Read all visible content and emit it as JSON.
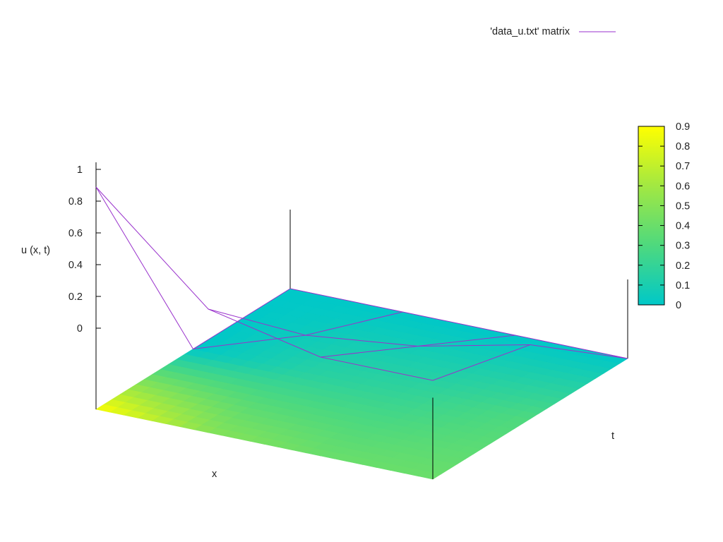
{
  "chart_data": {
    "type": "surface",
    "series": [
      {
        "name": "'data_u.txt' matrix",
        "color": "#9932cc"
      }
    ],
    "x_axis": {
      "label": "x",
      "ticks": []
    },
    "y_axis": {
      "label": "t",
      "ticks": []
    },
    "z_axis": {
      "label": "u (x, t)",
      "ticks": [
        "0",
        "0.2",
        "0.4",
        "0.6",
        "0.8",
        "1"
      ],
      "range": [
        0,
        1
      ]
    },
    "colorbar": {
      "ticks": [
        "0",
        "0.1",
        "0.2",
        "0.3",
        "0.4",
        "0.5",
        "0.6",
        "0.7",
        "0.8",
        "0.9"
      ],
      "range": [
        0,
        0.9
      ],
      "colors": [
        "#00c8c8",
        "#4ed97e",
        "#a2e842",
        "#ffff00"
      ]
    },
    "grid_shape": [
      4,
      3
    ],
    "values": [
      [
        0.9,
        0.5,
        0.4,
        0.4
      ],
      [
        0.0,
        0.15,
        0.2,
        0.3
      ],
      [
        0.0,
        0.0,
        0.0,
        0.0
      ]
    ]
  }
}
